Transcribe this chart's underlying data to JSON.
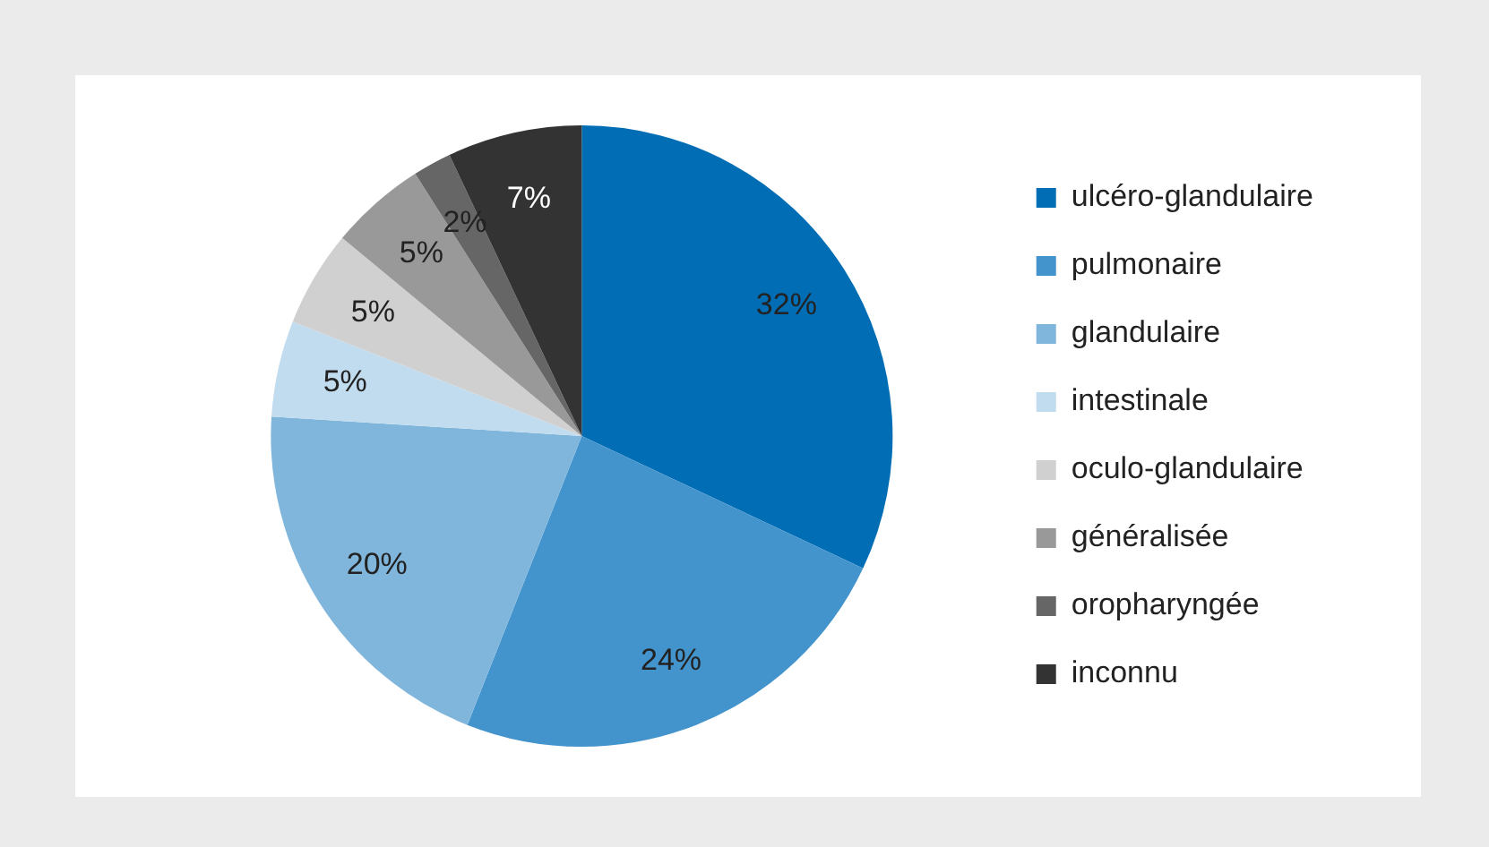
{
  "chart_data": {
    "type": "pie",
    "categories": [
      "ulcéro-glandulaire",
      "pulmonaire",
      "glandulaire",
      "intestinale",
      "oculo-glandulaire",
      "généralisée",
      "oropharyngée",
      "inconnu"
    ],
    "values": [
      32,
      24,
      20,
      5,
      5,
      5,
      2,
      7
    ],
    "colors": [
      "#006db5",
      "#4393cc",
      "#80b6dc",
      "#c2dcef",
      "#d0d0d0",
      "#999999",
      "#666666",
      "#333333"
    ],
    "value_labels": [
      "32%",
      "24%",
      "20%",
      "5%",
      "5%",
      "5%",
      "2%",
      "7%"
    ],
    "legend": "right"
  }
}
